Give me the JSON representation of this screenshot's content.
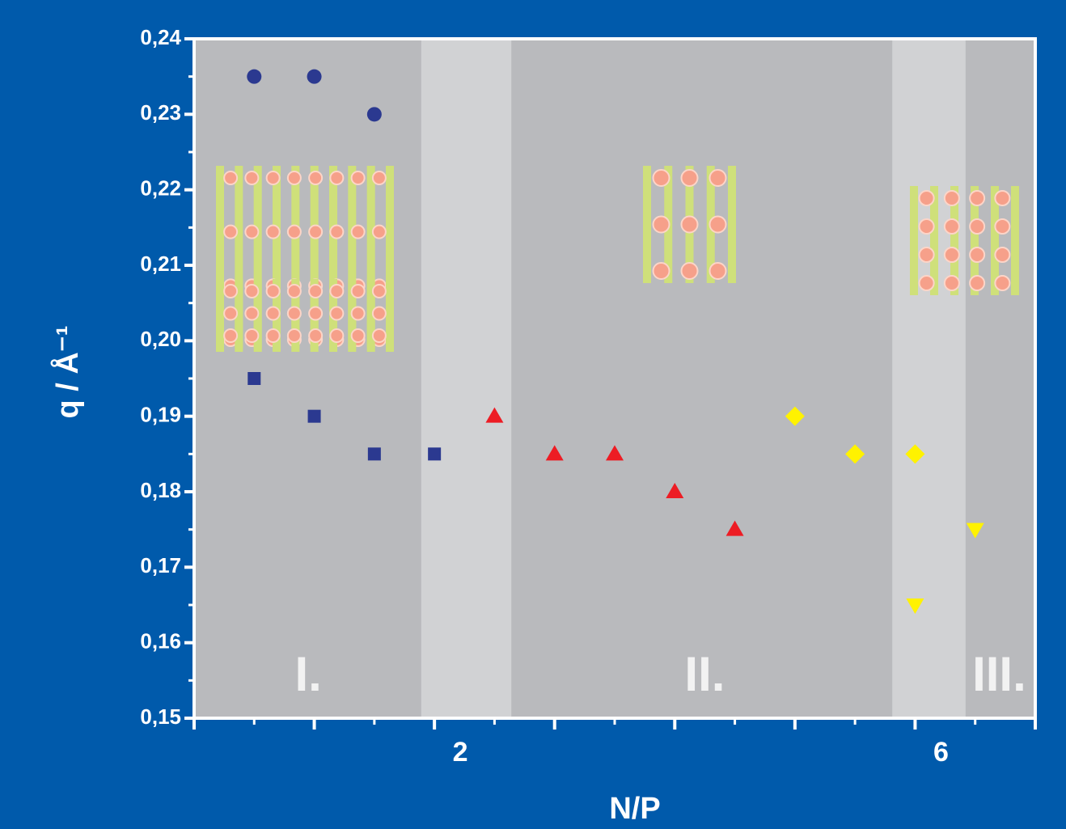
{
  "chart_data": {
    "type": "scatter",
    "xlabel": "N/P",
    "ylabel": "q / Å⁻¹",
    "xlim": [
      0,
      7
    ],
    "ylim": [
      0.15,
      0.24
    ],
    "xticks": [
      {
        "value": 0,
        "label": null
      },
      {
        "value": 1,
        "label": null
      },
      2,
      {
        "value": 3,
        "label": null
      },
      {
        "value": 4,
        "label": null
      },
      {
        "value": 5,
        "label": null
      },
      6,
      {
        "value": 7,
        "label": null
      }
    ],
    "yticks": [
      {
        "value": 0.15,
        "label": "0,15"
      },
      {
        "value": 0.16,
        "label": "0,16"
      },
      {
        "value": 0.17,
        "label": "0,17"
      },
      {
        "value": 0.18,
        "label": "0,18"
      },
      {
        "value": 0.19,
        "label": "0,19"
      },
      {
        "value": 0.2,
        "label": "0,20"
      },
      {
        "value": 0.21,
        "label": "0,21"
      },
      {
        "value": 0.22,
        "label": "0,22"
      },
      {
        "value": 0.23,
        "label": "0,23"
      },
      {
        "value": 0.24,
        "label": "0,24"
      }
    ],
    "bands": [
      {
        "from": 1.89,
        "to": 2.64
      },
      {
        "from": 5.81,
        "to": 6.42
      }
    ],
    "annotations": [
      {
        "text": "I.",
        "x": 0.95
      },
      {
        "text": "II.",
        "x": 4.25
      },
      {
        "text": "III.",
        "x": 6.7
      }
    ],
    "series": [
      {
        "marker": "circle",
        "color": "#2b3990",
        "x": [
          0.5,
          1,
          1.5
        ],
        "values": [
          0.235,
          0.235,
          0.23
        ]
      },
      {
        "marker": "square",
        "color": "#2b3990",
        "x": [
          0.5,
          1,
          1.5,
          2
        ],
        "values": [
          0.195,
          0.19,
          0.185,
          0.185
        ]
      },
      {
        "marker": "triangle-up",
        "color": "#ed1c24",
        "x": [
          2.5,
          3,
          3.5,
          4,
          4.5
        ],
        "values": [
          0.19,
          0.185,
          0.185,
          0.18,
          0.175
        ]
      },
      {
        "marker": "diamond",
        "color": "#fff200",
        "x": [
          5,
          5.5,
          6
        ],
        "values": [
          0.19,
          0.185,
          0.185
        ]
      },
      {
        "marker": "triangle-down",
        "color": "#fff200",
        "x": [
          6,
          6.5
        ],
        "values": [
          0.165,
          0.175
        ]
      }
    ]
  }
}
